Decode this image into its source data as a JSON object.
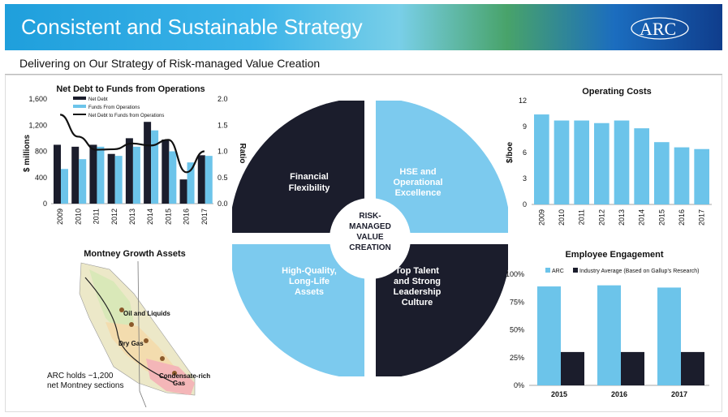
{
  "header": {
    "title": "Consistent and Sustainable Strategy",
    "logo_text": "ARC"
  },
  "subheader": "Delivering on Our Strategy of Risk-managed Value Creation",
  "colors": {
    "dark": "#1b1d2c",
    "light_blue": "#7ccaee",
    "bar_blue": "#6cc4ea"
  },
  "net_debt_chart": {
    "type": "bar",
    "title": "Net Debt to Funds from Operations",
    "categories": [
      "2009",
      "2010",
      "2011",
      "2012",
      "2013",
      "2014",
      "2015",
      "2016",
      "2017"
    ],
    "series": [
      {
        "name": "Net Debt",
        "values": [
          900,
          870,
          900,
          760,
          1000,
          1250,
          980,
          370,
          740
        ]
      },
      {
        "name": "Funds From Operations",
        "values": [
          530,
          680,
          870,
          730,
          870,
          1120,
          800,
          630,
          730
        ]
      }
    ],
    "ratio_series": {
      "name": "Net Debt to Funds from Operations",
      "values": [
        1.7,
        1.28,
        1.03,
        1.04,
        1.15,
        1.11,
        1.22,
        0.6,
        1.0
      ]
    },
    "ylabel": "$ millions",
    "y2label": "Ratio",
    "ylim": [
      0,
      1600
    ],
    "y2lim": [
      0,
      2.0
    ],
    "yticks": [
      "0",
      "400",
      "800",
      "1,200",
      "1,600"
    ],
    "y2ticks": [
      "0.0",
      "0.5",
      "1.0",
      "1.5",
      "2.0"
    ],
    "band": [
      1000,
      2000
    ]
  },
  "operating_costs_chart": {
    "type": "bar",
    "title": "Operating Costs",
    "categories": [
      "2009",
      "2010",
      "2011",
      "2012",
      "2013",
      "2014",
      "2015",
      "2016",
      "2017"
    ],
    "values": [
      10.4,
      9.7,
      9.7,
      9.4,
      9.7,
      8.8,
      7.2,
      6.6,
      6.4
    ],
    "ylabel": "$/boe",
    "ylim": [
      0,
      12
    ],
    "yticks": [
      "0",
      "3",
      "6",
      "9",
      "12"
    ]
  },
  "engagement_chart": {
    "type": "bar",
    "title": "Employee Engagement",
    "categories": [
      "2015",
      "2016",
      "2017"
    ],
    "series": [
      {
        "name": "ARC",
        "values": [
          89,
          90,
          88
        ]
      },
      {
        "name": "Industry Average (Based on Gallup's Research)",
        "values": [
          30,
          30,
          30
        ]
      }
    ],
    "ylim": [
      0,
      100
    ],
    "yticks": [
      "0%",
      "25%",
      "50%",
      "75%",
      "100%"
    ]
  },
  "wheel": {
    "center": [
      "RISK-",
      "MANAGED",
      "VALUE",
      "CREATION"
    ],
    "quadrants": {
      "top_left": [
        "Financial",
        "Flexibility"
      ],
      "top_right": [
        "HSE and",
        "Operational",
        "Excellence"
      ],
      "bottom_left": [
        "High-Quality,",
        "Long-Life",
        "Assets"
      ],
      "bottom_right": [
        "Top Talent",
        "and Strong",
        "Leadership",
        "Culture"
      ]
    }
  },
  "map": {
    "title": "Montney Growth Assets",
    "labels": [
      "Oil and Liquids",
      "Dry Gas",
      "Condensate-rich",
      "Gas"
    ],
    "caption": [
      "ARC holds ~1,200",
      "net Montney sections"
    ]
  }
}
